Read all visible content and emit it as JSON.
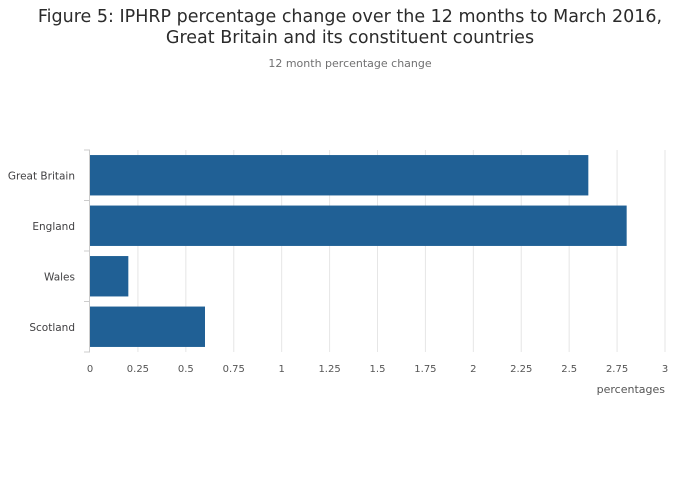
{
  "chart_data": {
    "type": "bar",
    "orientation": "horizontal",
    "title": "Figure 5: IPHRP percentage change over the 12 months to March 2016, Great Britain and its constituent countries",
    "title_lines": [
      "Figure 5: IPHRP percentage change over the 12 months to March 2016,",
      "Great Britain and its constituent countries"
    ],
    "subtitle": "12 month percentage change",
    "categories": [
      "Great Britain",
      "England",
      "Wales",
      "Scotland"
    ],
    "values": [
      2.6,
      2.8,
      0.2,
      0.6
    ],
    "xlabel": "percentages",
    "ylabel": "",
    "xlim": [
      0,
      3
    ],
    "xticks": [
      0,
      0.25,
      0.5,
      0.75,
      1,
      1.25,
      1.5,
      1.75,
      2,
      2.25,
      2.5,
      2.75,
      3
    ],
    "xtick_labels": [
      "0",
      "0.25",
      "0.5",
      "0.75",
      "1",
      "1.25",
      "1.5",
      "1.75",
      "2",
      "2.25",
      "2.5",
      "2.75",
      "3"
    ],
    "grid": true,
    "legend": "none",
    "bar_color": "#206095",
    "grid_color": "#e6e6e6",
    "axis_color": "#cccccc"
  }
}
